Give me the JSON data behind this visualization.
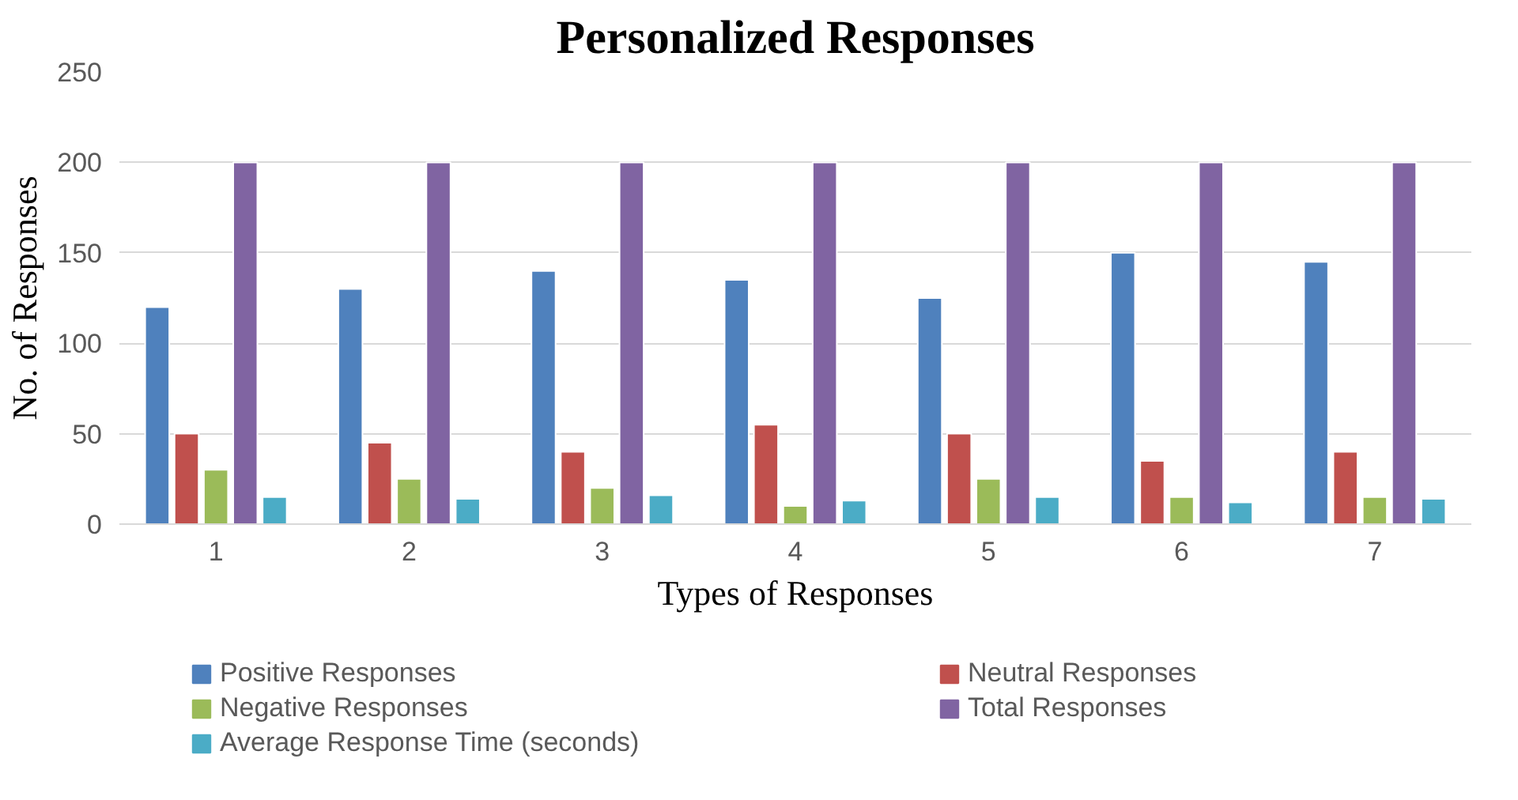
{
  "chart_data": {
    "type": "bar",
    "title": "Personalized Responses",
    "xlabel": "Types of Responses",
    "ylabel": "No. of Responses",
    "categories": [
      "1",
      "2",
      "3",
      "4",
      "5",
      "6",
      "7"
    ],
    "series": [
      {
        "name": "Positive Responses",
        "color": "#4f81bd",
        "values": [
          120,
          130,
          140,
          135,
          125,
          150,
          145
        ]
      },
      {
        "name": "Neutral Responses",
        "color": "#c0504d",
        "values": [
          50,
          45,
          40,
          55,
          50,
          35,
          40
        ]
      },
      {
        "name": "Negative Responses",
        "color": "#9bbb59",
        "values": [
          30,
          25,
          20,
          10,
          25,
          15,
          15
        ]
      },
      {
        "name": "Total Responses",
        "color": "#8064a2",
        "values": [
          200,
          200,
          200,
          200,
          200,
          200,
          200
        ]
      },
      {
        "name": "Average Response Time (seconds)",
        "color": "#4bacc6",
        "values": [
          15,
          14,
          16,
          13,
          15,
          12,
          14
        ]
      }
    ],
    "ylim": [
      0,
      250
    ],
    "yticks": [
      0,
      50,
      100,
      150,
      200,
      250
    ],
    "grid": "y",
    "legend": "bottom"
  }
}
